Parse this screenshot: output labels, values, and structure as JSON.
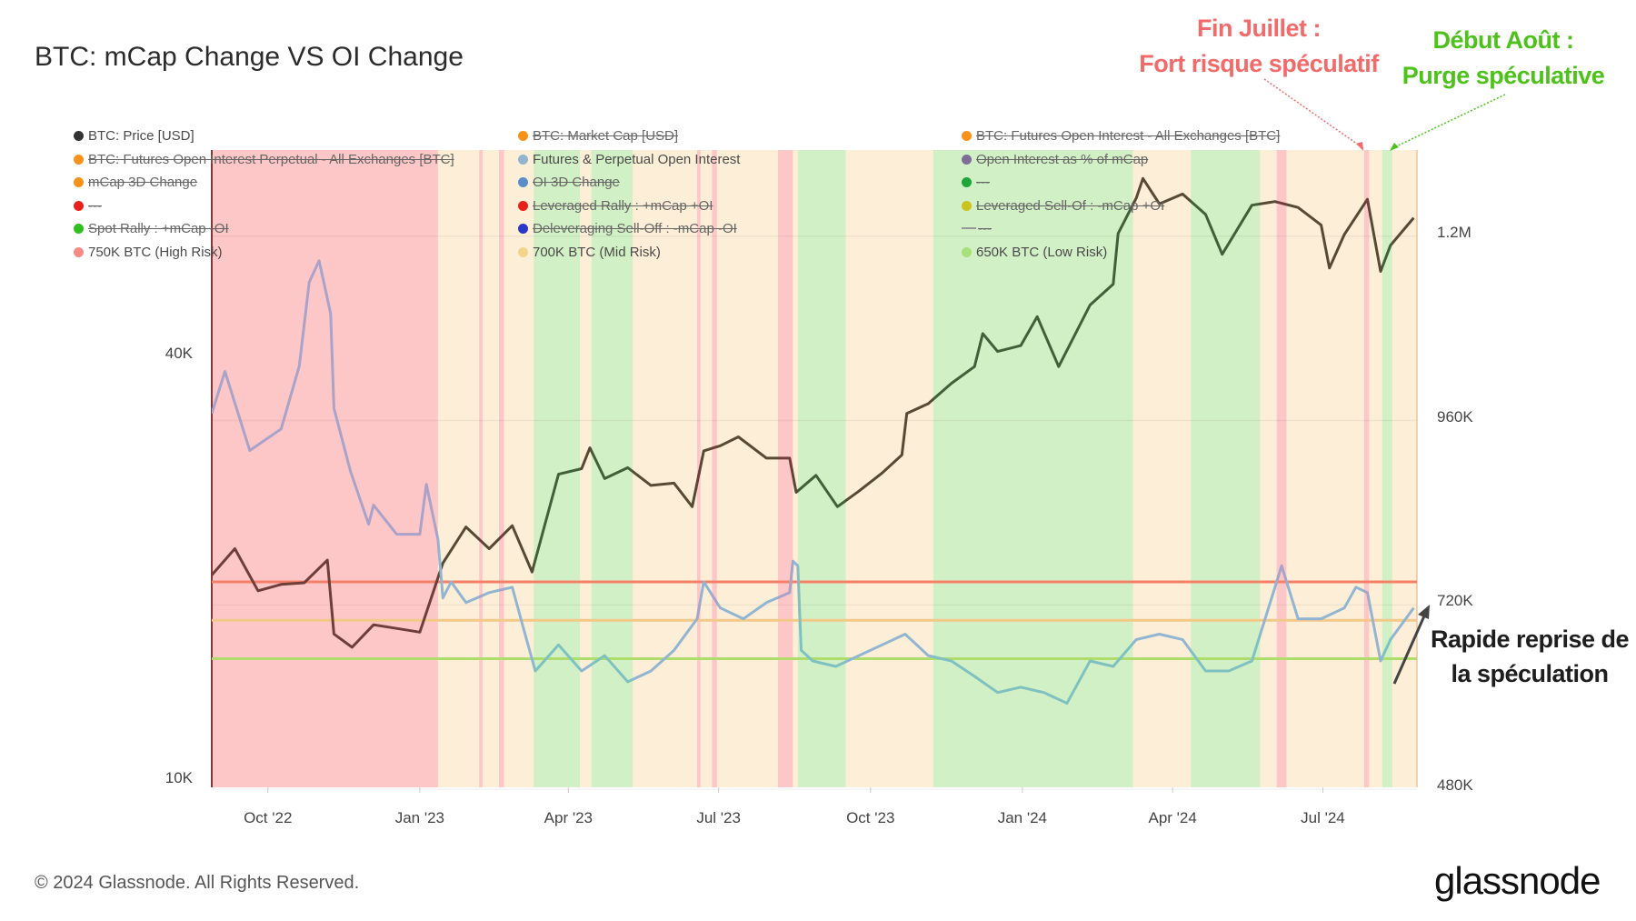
{
  "chart_data": {
    "type": "line",
    "title": "BTC: mCap Change VS OI Change",
    "x_range": [
      "2022-08-28",
      "2024-08-27"
    ],
    "x_ticks": [
      {
        "date": "2022-10-01",
        "label": "Oct '22"
      },
      {
        "date": "2023-01-01",
        "label": "Jan '23"
      },
      {
        "date": "2023-04-01",
        "label": "Apr '23"
      },
      {
        "date": "2023-07-01",
        "label": "Jul '23"
      },
      {
        "date": "2023-10-01",
        "label": "Oct '23"
      },
      {
        "date": "2024-01-01",
        "label": "Jan '24"
      },
      {
        "date": "2024-04-01",
        "label": "Apr '24"
      },
      {
        "date": "2024-07-01",
        "label": "Jul '24"
      }
    ],
    "y_left": {
      "scale": "log",
      "ticks": [
        {
          "value": 10000,
          "label": "10K"
        },
        {
          "value": 40000,
          "label": "40K"
        }
      ]
    },
    "y_right": {
      "scale": "linear",
      "ticks": [
        {
          "value": 480000,
          "label": "480K"
        },
        {
          "value": 720000,
          "label": "720K"
        },
        {
          "value": 960000,
          "label": "960K"
        },
        {
          "value": 1200000,
          "label": "1.2M"
        }
      ]
    },
    "grid": true,
    "legend_placement": "top",
    "legend": [
      {
        "label": "BTC: Price [USD]",
        "color": "#333333",
        "active": true
      },
      {
        "label": "BTC: Futures Open Interest Perpetual - All Exchanges [BTC]",
        "color": "#f7931a",
        "active": false
      },
      {
        "label": "mCap 3D Change",
        "color": "#f7931a",
        "active": false
      },
      {
        "label": "---",
        "color": "#e8211c",
        "active": false
      },
      {
        "label": "Spot Rally : +mCap -OI",
        "color": "#2fbf1f",
        "active": false
      },
      {
        "label": "750K BTC (High Risk)",
        "color": "#f78a84",
        "active": true
      },
      {
        "label": "BTC: Market Cap [USD]",
        "color": "#f7931a",
        "active": false
      },
      {
        "label": "Futures & Perpetual Open Interest",
        "color": "#93b4cf",
        "active": true
      },
      {
        "label": "OI 3D Change",
        "color": "#5b8ec9",
        "active": false
      },
      {
        "label": "Leveraged Rally : +mCap +OI",
        "color": "#e8211c",
        "active": false
      },
      {
        "label": "Deleveraging Sell-Off : -mCap -OI",
        "color": "#2a35c9",
        "active": false
      },
      {
        "label": "700K BTC (Mid Risk)",
        "color": "#f2d48a",
        "active": true
      },
      {
        "label": "BTC: Futures Open Interest - All Exchanges [BTC]",
        "color": "#f7931a",
        "active": false
      },
      {
        "label": "Open Interest as % of mCap",
        "color": "#7d6e96",
        "active": false
      },
      {
        "label": "---",
        "color": "#1fa63a",
        "active": false
      },
      {
        "label": "Leveraged Sell-Of : -mCap +OI",
        "color": "#c9c21f",
        "active": false
      },
      {
        "label": "---",
        "color": "#999999",
        "active": false,
        "marker": "line"
      },
      {
        "label": "650K BTC (Low Risk)",
        "color": "#a8e07a",
        "active": true
      }
    ],
    "regime_colors": {
      "high": {
        "band": "#fdc7c7",
        "price": "#6e3e3b",
        "oi": "#a9a2c9"
      },
      "mid": {
        "band": "#fdefd7",
        "price": "#574a34",
        "oi": "#91b5d2"
      },
      "low": {
        "band": "#d2f0c5",
        "price": "#41603a",
        "oi": "#7fc1c1"
      }
    },
    "regimes": [
      [
        "2022-08-28",
        "2023-01-12",
        "high"
      ],
      [
        "2023-01-12",
        "2023-02-06",
        "mid"
      ],
      [
        "2023-02-06",
        "2023-02-08",
        "high"
      ],
      [
        "2023-02-08",
        "2023-02-18",
        "mid"
      ],
      [
        "2023-02-18",
        "2023-02-21",
        "high"
      ],
      [
        "2023-02-21",
        "2023-03-11",
        "mid"
      ],
      [
        "2023-03-11",
        "2023-04-08",
        "low"
      ],
      [
        "2023-04-08",
        "2023-04-15",
        "mid"
      ],
      [
        "2023-04-15",
        "2023-05-10",
        "low"
      ],
      [
        "2023-05-10",
        "2023-06-18",
        "mid"
      ],
      [
        "2023-06-18",
        "2023-06-20",
        "high"
      ],
      [
        "2023-06-20",
        "2023-06-27",
        "mid"
      ],
      [
        "2023-06-27",
        "2023-06-30",
        "high"
      ],
      [
        "2023-06-30",
        "2023-08-06",
        "mid"
      ],
      [
        "2023-08-06",
        "2023-08-15",
        "high"
      ],
      [
        "2023-08-15",
        "2023-08-18",
        "mid"
      ],
      [
        "2023-08-18",
        "2023-09-16",
        "low"
      ],
      [
        "2023-09-16",
        "2023-11-08",
        "mid"
      ],
      [
        "2023-11-08",
        "2024-03-08",
        "low"
      ],
      [
        "2024-03-08",
        "2024-04-12",
        "mid"
      ],
      [
        "2024-04-12",
        "2024-05-24",
        "low"
      ],
      [
        "2024-05-24",
        "2024-06-03",
        "mid"
      ],
      [
        "2024-06-03",
        "2024-06-09",
        "high"
      ],
      [
        "2024-06-09",
        "2024-07-26",
        "mid"
      ],
      [
        "2024-07-26",
        "2024-07-29",
        "high"
      ],
      [
        "2024-07-29",
        "2024-08-06",
        "mid"
      ],
      [
        "2024-08-06",
        "2024-08-12",
        "low"
      ],
      [
        "2024-08-12",
        "2024-08-27",
        "mid"
      ]
    ],
    "thresholds": [
      {
        "label": "750K BTC (High Risk)",
        "value": 750000,
        "color": "#f4806a"
      },
      {
        "label": "700K BTC (Mid Risk)",
        "value": 700000,
        "color": "#f2c98a"
      },
      {
        "label": "650K BTC (Low Risk)",
        "value": 650000,
        "color": "#aedd6c"
      }
    ],
    "series": [
      {
        "name": "BTC: Price [USD]",
        "axis": "left",
        "points": [
          [
            "2022-08-28",
            20000
          ],
          [
            "2022-09-11",
            21800
          ],
          [
            "2022-09-25",
            19000
          ],
          [
            "2022-10-09",
            19400
          ],
          [
            "2022-10-23",
            19500
          ],
          [
            "2022-11-06",
            21000
          ],
          [
            "2022-11-10",
            16500
          ],
          [
            "2022-11-21",
            15800
          ],
          [
            "2022-12-04",
            17000
          ],
          [
            "2022-12-18",
            16800
          ],
          [
            "2023-01-01",
            16600
          ],
          [
            "2023-01-15",
            20800
          ],
          [
            "2023-01-29",
            23400
          ],
          [
            "2023-02-12",
            21800
          ],
          [
            "2023-02-26",
            23500
          ],
          [
            "2023-03-10",
            20200
          ],
          [
            "2023-03-26",
            27800
          ],
          [
            "2023-04-09",
            28300
          ],
          [
            "2023-04-14",
            30300
          ],
          [
            "2023-04-23",
            27400
          ],
          [
            "2023-05-07",
            28400
          ],
          [
            "2023-05-21",
            26800
          ],
          [
            "2023-06-04",
            27000
          ],
          [
            "2023-06-15",
            25000
          ],
          [
            "2023-06-22",
            30000
          ],
          [
            "2023-07-02",
            30500
          ],
          [
            "2023-07-13",
            31400
          ],
          [
            "2023-07-30",
            29300
          ],
          [
            "2023-08-13",
            29300
          ],
          [
            "2023-08-17",
            26200
          ],
          [
            "2023-08-29",
            27700
          ],
          [
            "2023-09-11",
            25000
          ],
          [
            "2023-09-24",
            26300
          ],
          [
            "2023-10-08",
            27900
          ],
          [
            "2023-10-20",
            29600
          ],
          [
            "2023-10-23",
            33900
          ],
          [
            "2023-11-05",
            35000
          ],
          [
            "2023-11-19",
            37400
          ],
          [
            "2023-12-03",
            39500
          ],
          [
            "2023-12-08",
            44000
          ],
          [
            "2023-12-17",
            41500
          ],
          [
            "2023-12-31",
            42300
          ],
          [
            "2024-01-10",
            46500
          ],
          [
            "2024-01-23",
            39500
          ],
          [
            "2024-02-11",
            48300
          ],
          [
            "2024-02-25",
            51700
          ],
          [
            "2024-02-28",
            61000
          ],
          [
            "2024-03-10",
            68500
          ],
          [
            "2024-03-14",
            73000
          ],
          [
            "2024-03-24",
            67200
          ],
          [
            "2024-04-07",
            69400
          ],
          [
            "2024-04-21",
            64900
          ],
          [
            "2024-05-01",
            57000
          ],
          [
            "2024-05-19",
            66900
          ],
          [
            "2024-06-02",
            67700
          ],
          [
            "2024-06-16",
            66400
          ],
          [
            "2024-06-30",
            62700
          ],
          [
            "2024-07-05",
            54500
          ],
          [
            "2024-07-14",
            60800
          ],
          [
            "2024-07-28",
            68200
          ],
          [
            "2024-08-05",
            53900
          ],
          [
            "2024-08-11",
            58700
          ],
          [
            "2024-08-25",
            64200
          ]
        ]
      },
      {
        "name": "Futures & Perpetual Open Interest",
        "axis": "right",
        "points": [
          [
            "2022-08-28",
            969000
          ],
          [
            "2022-09-05",
            1024000
          ],
          [
            "2022-09-20",
            921000
          ],
          [
            "2022-10-09",
            949000
          ],
          [
            "2022-10-20",
            1031000
          ],
          [
            "2022-10-26",
            1140000
          ],
          [
            "2022-11-01",
            1168000
          ],
          [
            "2022-11-08",
            1099000
          ],
          [
            "2022-11-10",
            976000
          ],
          [
            "2022-11-20",
            894000
          ],
          [
            "2022-12-01",
            825000
          ],
          [
            "2022-12-04",
            850000
          ],
          [
            "2022-12-18",
            812000
          ],
          [
            "2023-01-01",
            812000
          ],
          [
            "2023-01-05",
            877000
          ],
          [
            "2023-01-12",
            805000
          ],
          [
            "2023-01-15",
            729000
          ],
          [
            "2023-01-20",
            750000
          ],
          [
            "2023-01-29",
            723000
          ],
          [
            "2023-02-12",
            736000
          ],
          [
            "2023-02-26",
            743000
          ],
          [
            "2023-03-05",
            688000
          ],
          [
            "2023-03-12",
            634000
          ],
          [
            "2023-03-26",
            668000
          ],
          [
            "2023-04-09",
            634000
          ],
          [
            "2023-04-23",
            654000
          ],
          [
            "2023-05-07",
            620000
          ],
          [
            "2023-05-21",
            634000
          ],
          [
            "2023-06-04",
            661000
          ],
          [
            "2023-06-18",
            702000
          ],
          [
            "2023-06-22",
            750000
          ],
          [
            "2023-07-02",
            716000
          ],
          [
            "2023-07-16",
            702000
          ],
          [
            "2023-07-30",
            723000
          ],
          [
            "2023-08-13",
            736000
          ],
          [
            "2023-08-15",
            777000
          ],
          [
            "2023-08-18",
            771000
          ],
          [
            "2023-08-20",
            661000
          ],
          [
            "2023-08-27",
            647000
          ],
          [
            "2023-09-10",
            640000
          ],
          [
            "2023-09-24",
            654000
          ],
          [
            "2023-10-08",
            668000
          ],
          [
            "2023-10-22",
            682000
          ],
          [
            "2023-11-05",
            654000
          ],
          [
            "2023-11-19",
            647000
          ],
          [
            "2023-12-03",
            627000
          ],
          [
            "2023-12-17",
            606000
          ],
          [
            "2023-12-31",
            613000
          ],
          [
            "2024-01-14",
            606000
          ],
          [
            "2024-01-28",
            592000
          ],
          [
            "2024-02-11",
            647000
          ],
          [
            "2024-02-25",
            640000
          ],
          [
            "2024-03-10",
            675000
          ],
          [
            "2024-03-24",
            682000
          ],
          [
            "2024-04-07",
            675000
          ],
          [
            "2024-04-21",
            634000
          ],
          [
            "2024-05-05",
            634000
          ],
          [
            "2024-05-19",
            647000
          ],
          [
            "2024-06-02",
            743000
          ],
          [
            "2024-06-06",
            771000
          ],
          [
            "2024-06-16",
            702000
          ],
          [
            "2024-06-30",
            702000
          ],
          [
            "2024-07-14",
            716000
          ],
          [
            "2024-07-21",
            743000
          ],
          [
            "2024-07-28",
            736000
          ],
          [
            "2024-08-05",
            647000
          ],
          [
            "2024-08-11",
            675000
          ],
          [
            "2024-08-25",
            716000
          ]
        ]
      }
    ]
  },
  "annotations": {
    "fin_juillet_title": "Fin Juillet :",
    "fin_juillet_text": "Fort risque spéculatif",
    "debut_aout_title": "Début Août :",
    "debut_aout_text": "Purge spéculative",
    "reprise_line1": "Rapide reprise de",
    "reprise_line2": "la spéculation",
    "red_color": "#f26b6b",
    "green_color": "#4cc21a"
  },
  "footer": {
    "copyright": "© 2024 Glassnode. All Rights Reserved.",
    "logo": "glassnode"
  }
}
